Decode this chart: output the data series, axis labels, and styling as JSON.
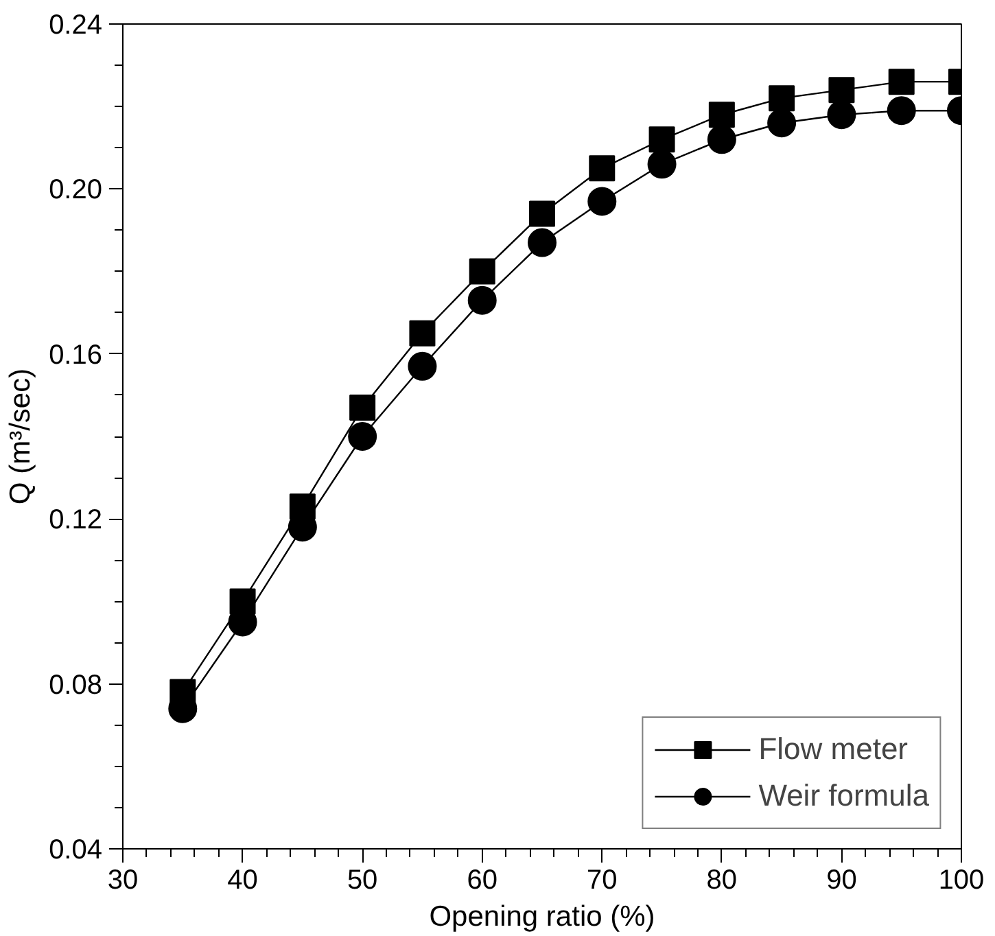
{
  "chart_data": {
    "type": "line",
    "xlabel": "Opening ratio (%)",
    "ylabel": "Q (m³/sec)",
    "x": [
      35,
      40,
      45,
      50,
      55,
      60,
      65,
      70,
      75,
      80,
      85,
      90,
      95,
      100
    ],
    "series": [
      {
        "name": "Flow meter",
        "color": "#000000",
        "marker": "square",
        "values": [
          0.078,
          0.1,
          0.123,
          0.147,
          0.165,
          0.18,
          0.194,
          0.205,
          0.212,
          0.218,
          0.222,
          0.224,
          0.226,
          0.226
        ]
      },
      {
        "name": "Weir formula",
        "color": "#000000",
        "marker": "circle",
        "values": [
          0.074,
          0.095,
          0.118,
          0.14,
          0.157,
          0.173,
          0.187,
          0.197,
          0.206,
          0.212,
          0.216,
          0.218,
          0.219,
          0.219
        ]
      }
    ],
    "xlim": [
      30,
      100
    ],
    "xticks": [
      30,
      40,
      50,
      60,
      70,
      80,
      90,
      100
    ],
    "ylim": [
      0.04,
      0.24
    ],
    "yticks": [
      {
        "value": 0.04,
        "label": "0.04"
      },
      {
        "value": 0.08,
        "label": "0.08"
      },
      {
        "value": 0.12,
        "label": "0.12"
      },
      {
        "value": 0.16,
        "label": "0.16"
      },
      {
        "value": 0.2,
        "label": "0.20"
      },
      {
        "value": 0.24,
        "label": "0.24"
      }
    ],
    "grid": false,
    "legend": "bottom right",
    "line_style": "solid"
  }
}
